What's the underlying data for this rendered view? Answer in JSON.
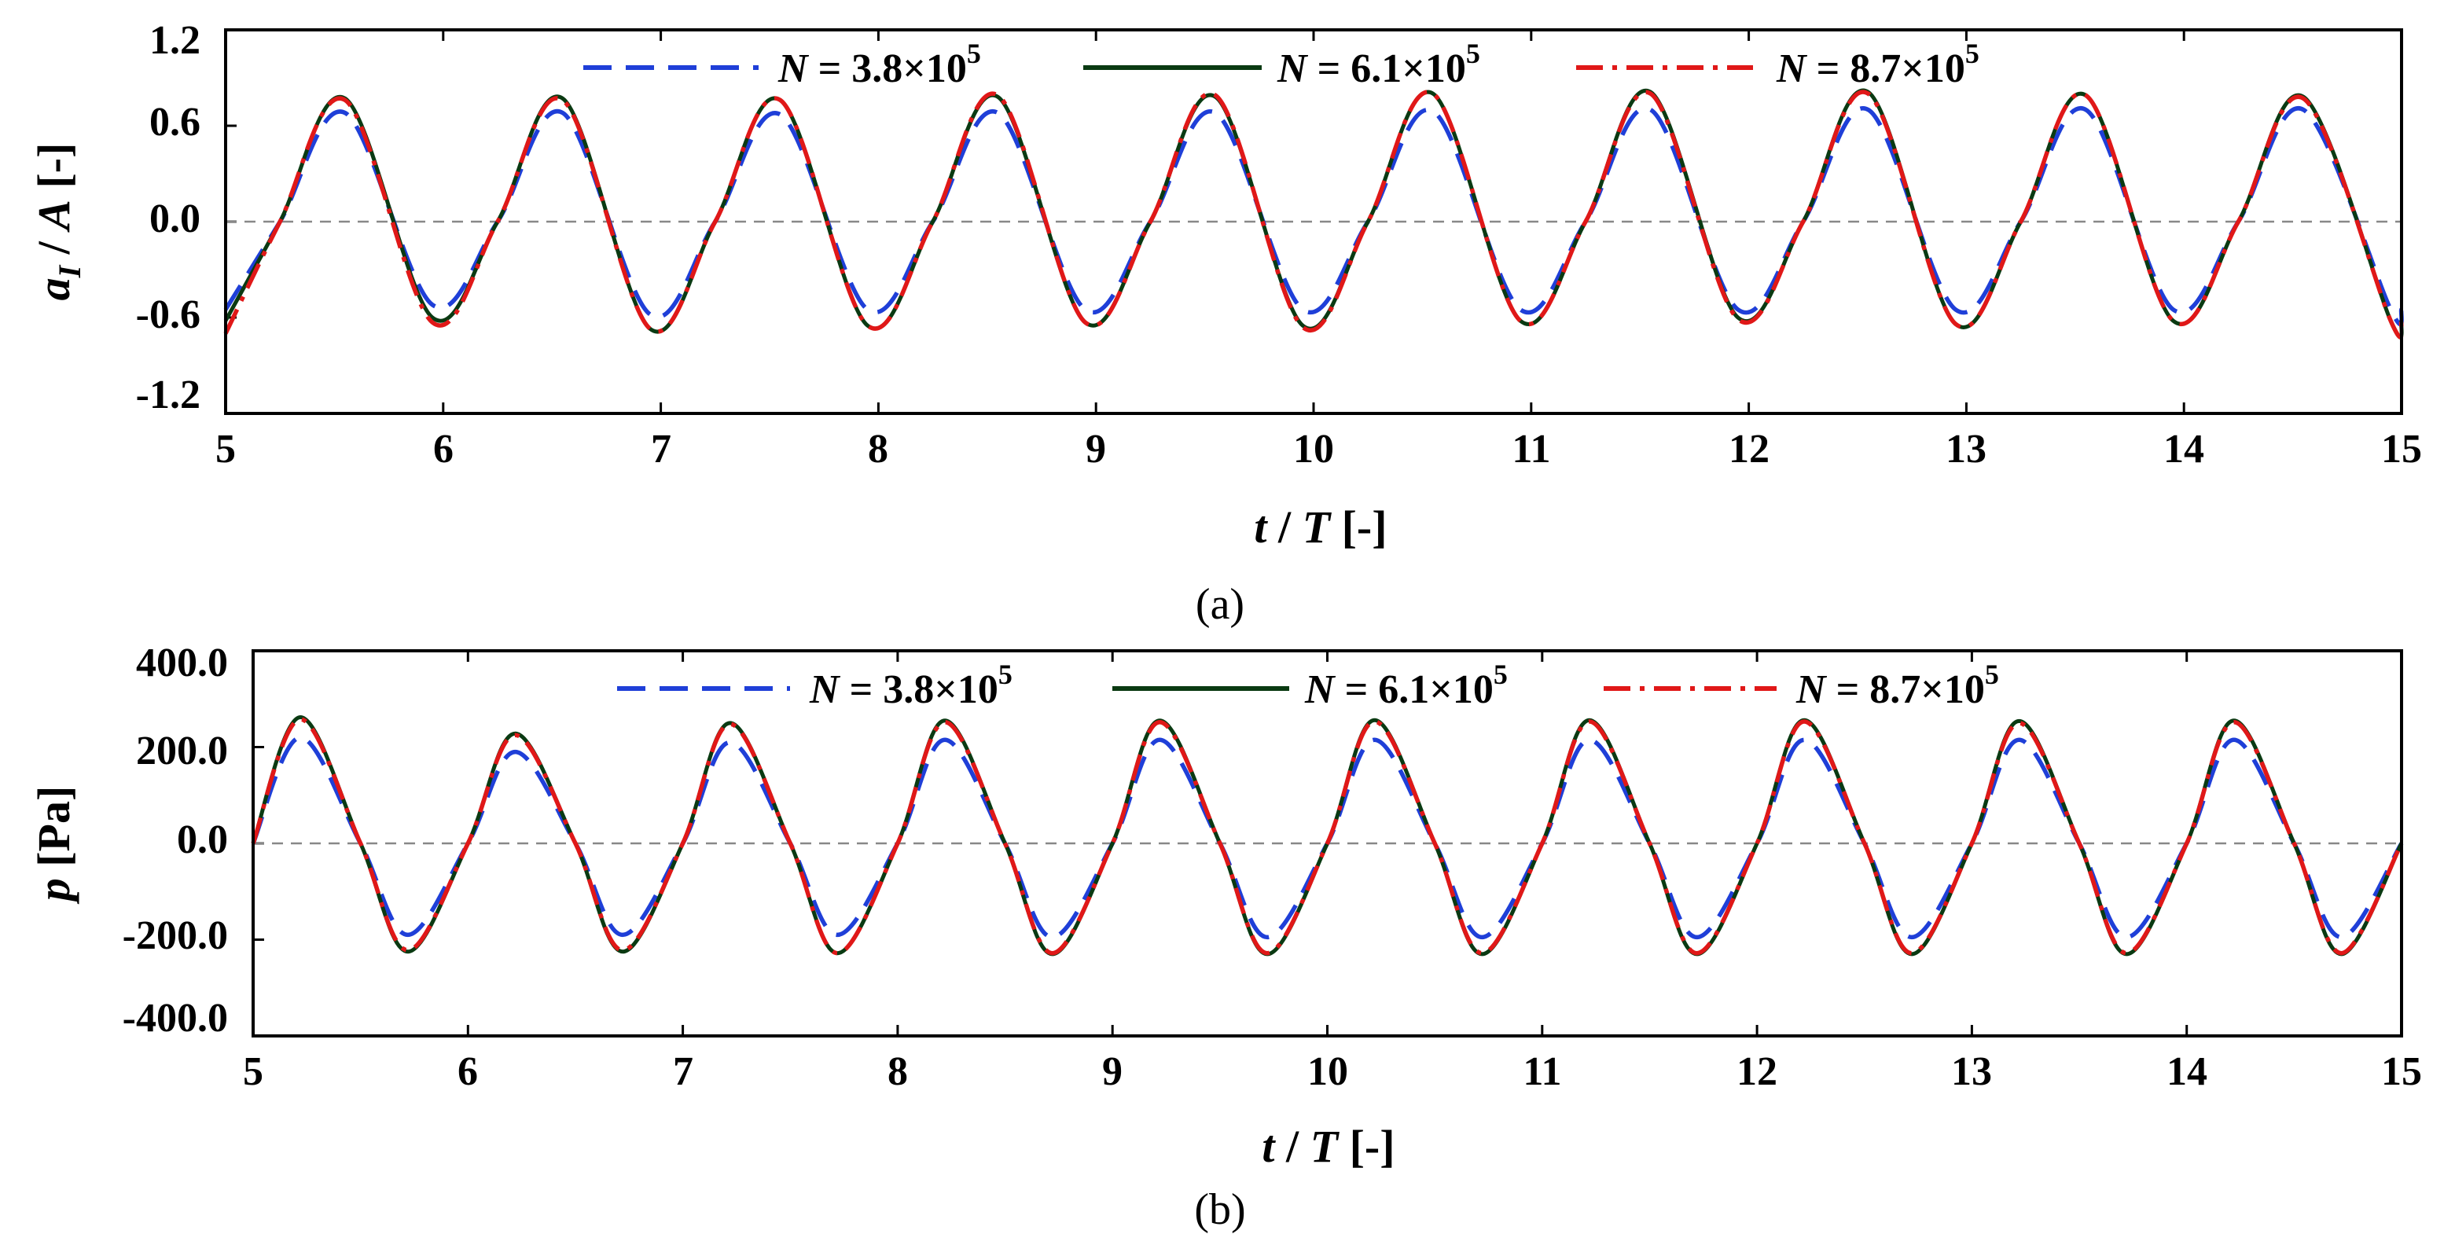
{
  "chart_data": [
    {
      "panel": "(a)",
      "type": "line",
      "xlabel": {
        "var": "t",
        "sep": " / ",
        "var2": "T",
        "unit": " [-]"
      },
      "ylabel": {
        "var": "a",
        "sub": "I",
        "sep": " / ",
        "var2": "A",
        "unit": " [-]"
      },
      "xlim": [
        5,
        15
      ],
      "ylim": [
        -1.2,
        1.2
      ],
      "xticks": [
        "5",
        "6",
        "7",
        "8",
        "9",
        "10",
        "11",
        "12",
        "13",
        "14",
        "15"
      ],
      "yticks": [
        "1.2",
        "0.6",
        "0.0",
        "-0.6",
        "-1.2"
      ],
      "reference_line": {
        "y": 0,
        "style": "dashed",
        "color": "#888888"
      },
      "grid": false,
      "legend": "top, inside, horizontal",
      "series": [
        {
          "name": "N = 3.8×10^5",
          "color": "#1f3fd8",
          "style": "dashed",
          "x": [
            5.0,
            5.25,
            5.55,
            5.95,
            6.25,
            6.55,
            6.95,
            7.25,
            7.55,
            7.95,
            8.25,
            8.55,
            8.95,
            9.25,
            9.55,
            9.95,
            10.25,
            10.55,
            10.95,
            11.25,
            11.55,
            11.95,
            12.25,
            12.55,
            12.95,
            13.25,
            13.55,
            13.95,
            14.25,
            14.55,
            14.95,
            15.0
          ],
          "y": [
            -0.55,
            0.0,
            0.68,
            -0.52,
            0.0,
            0.68,
            -0.58,
            0.0,
            0.67,
            -0.55,
            0.0,
            0.68,
            -0.55,
            0.0,
            0.68,
            -0.55,
            0.0,
            0.69,
            -0.55,
            0.0,
            0.7,
            -0.55,
            0.0,
            0.7,
            -0.55,
            0.0,
            0.7,
            -0.55,
            0.0,
            0.7,
            -0.55,
            -0.55
          ]
        },
        {
          "name": "N = 6.1×10^5",
          "color": "#0a3a12",
          "style": "solid",
          "x": [
            5.0,
            5.25,
            5.55,
            5.95,
            6.25,
            6.55,
            6.95,
            7.25,
            7.55,
            7.95,
            8.25,
            8.55,
            8.95,
            9.25,
            9.55,
            9.95,
            10.25,
            10.55,
            10.95,
            11.25,
            11.55,
            11.95,
            12.25,
            12.55,
            12.95,
            13.25,
            13.55,
            13.95,
            14.25,
            14.55,
            14.95,
            15.0
          ],
          "y": [
            -0.62,
            0.0,
            0.77,
            -0.6,
            0.0,
            0.77,
            -0.67,
            0.0,
            0.76,
            -0.65,
            0.0,
            0.78,
            -0.63,
            0.0,
            0.78,
            -0.65,
            0.0,
            0.8,
            -0.62,
            0.0,
            0.81,
            -0.6,
            0.0,
            0.81,
            -0.64,
            0.0,
            0.79,
            -0.62,
            0.0,
            0.78,
            -0.62,
            -0.62
          ]
        },
        {
          "name": "N = 8.7×10^5",
          "color": "#e01818",
          "style": "dashdot",
          "x": [
            5.0,
            5.25,
            5.55,
            5.95,
            6.25,
            6.55,
            6.95,
            7.25,
            7.55,
            7.95,
            8.25,
            8.55,
            8.95,
            9.25,
            9.55,
            9.95,
            10.25,
            10.55,
            10.95,
            11.25,
            11.55,
            11.95,
            12.25,
            12.55,
            12.95,
            13.25,
            13.55,
            13.95,
            14.25,
            14.55,
            14.95,
            15.0
          ],
          "y": [
            -0.7,
            0.0,
            0.76,
            -0.63,
            0.0,
            0.76,
            -0.67,
            0.0,
            0.76,
            -0.65,
            0.0,
            0.79,
            -0.63,
            0.0,
            0.79,
            -0.66,
            0.0,
            0.8,
            -0.62,
            0.0,
            0.8,
            -0.61,
            0.0,
            0.8,
            -0.64,
            0.0,
            0.79,
            -0.62,
            0.0,
            0.77,
            -0.62,
            -0.62
          ]
        }
      ],
      "legend_entries": [
        {
          "var": "N",
          "text": " = 3.8×10",
          "exp": "5"
        },
        {
          "var": "N",
          "text": " = 6.1×10",
          "exp": "5"
        },
        {
          "var": "N",
          "text": " = 8.7×10",
          "exp": "5"
        }
      ]
    },
    {
      "panel": "(b)",
      "type": "line",
      "xlabel": {
        "var": "t",
        "sep": " / ",
        "var2": "T",
        "unit": " [-]"
      },
      "ylabel": {
        "var": "p",
        "unit": " [Pa]"
      },
      "xlim": [
        5,
        15
      ],
      "ylim": [
        -400,
        400
      ],
      "xticks": [
        "5",
        "6",
        "7",
        "8",
        "9",
        "10",
        "11",
        "12",
        "13",
        "14",
        "15"
      ],
      "yticks": [
        "400.0",
        "200.0",
        "0.0",
        "-200.0",
        "-400.0"
      ],
      "reference_line": {
        "y": 0,
        "style": "dashed",
        "color": "#888888"
      },
      "grid": false,
      "legend": "top, inside, horizontal",
      "series": [
        {
          "name": "N = 3.8×10^5",
          "color": "#1f3fd8",
          "style": "dashed",
          "x": [
            5.0,
            5.22,
            5.5,
            5.72,
            6.0,
            6.22,
            6.5,
            6.72,
            7.0,
            7.22,
            7.5,
            7.72,
            8.0,
            8.22,
            8.5,
            8.72,
            9.0,
            9.22,
            9.5,
            9.72,
            10.0,
            10.22,
            10.5,
            10.72,
            11.0,
            11.22,
            11.5,
            11.72,
            12.0,
            12.22,
            12.5,
            12.72,
            13.0,
            13.22,
            13.5,
            13.72,
            14.0,
            14.22,
            14.5,
            14.72,
            15.0
          ],
          "y": [
            0,
            220,
            0,
            -190,
            0,
            190,
            0,
            -190,
            0,
            210,
            0,
            -190,
            0,
            215,
            0,
            -195,
            0,
            215,
            0,
            -195,
            0,
            215,
            0,
            -195,
            0,
            215,
            0,
            -195,
            0,
            215,
            0,
            -195,
            0,
            215,
            0,
            -195,
            0,
            215,
            0,
            -195,
            0
          ]
        },
        {
          "name": "N = 6.1×10^5",
          "color": "#0a3a12",
          "style": "solid",
          "x": [
            5.0,
            5.22,
            5.5,
            5.72,
            6.0,
            6.22,
            6.5,
            6.72,
            7.0,
            7.22,
            7.5,
            7.72,
            8.0,
            8.22,
            8.5,
            8.72,
            9.0,
            9.22,
            9.5,
            9.72,
            10.0,
            10.22,
            10.5,
            10.72,
            11.0,
            11.22,
            11.5,
            11.72,
            12.0,
            12.22,
            12.5,
            12.72,
            13.0,
            13.22,
            13.5,
            13.72,
            14.0,
            14.22,
            14.5,
            14.72,
            15.0
          ],
          "y": [
            0,
            262,
            0,
            -225,
            0,
            228,
            0,
            -225,
            0,
            250,
            0,
            -228,
            0,
            255,
            0,
            -230,
            0,
            255,
            0,
            -230,
            0,
            256,
            0,
            -230,
            0,
            256,
            0,
            -230,
            0,
            256,
            0,
            -230,
            0,
            254,
            0,
            -230,
            0,
            255,
            0,
            -230,
            0
          ]
        },
        {
          "name": "N = 8.7×10^5",
          "color": "#e01818",
          "style": "dashdot",
          "x": [
            5.0,
            5.22,
            5.5,
            5.72,
            6.0,
            6.22,
            6.5,
            6.72,
            7.0,
            7.22,
            7.5,
            7.72,
            8.0,
            8.22,
            8.5,
            8.72,
            9.0,
            9.22,
            9.5,
            9.72,
            10.0,
            10.22,
            10.5,
            10.72,
            11.0,
            11.22,
            11.5,
            11.72,
            12.0,
            12.22,
            12.5,
            12.72,
            13.0,
            13.22,
            13.5,
            13.72,
            14.0,
            14.22,
            14.5,
            14.72,
            15.0
          ],
          "y": [
            0,
            258,
            0,
            -222,
            0,
            225,
            0,
            -222,
            0,
            248,
            0,
            -228,
            0,
            252,
            0,
            -228,
            0,
            252,
            0,
            -228,
            0,
            253,
            0,
            -228,
            0,
            253,
            0,
            -228,
            0,
            253,
            0,
            -228,
            0,
            250,
            0,
            -228,
            0,
            252,
            0,
            -228,
            0
          ]
        }
      ],
      "legend_entries": [
        {
          "var": "N",
          "text": " = 3.8×10",
          "exp": "5"
        },
        {
          "var": "N",
          "text": " = 6.1×10",
          "exp": "5"
        },
        {
          "var": "N",
          "text": " = 8.7×10",
          "exp": "5"
        }
      ]
    }
  ]
}
